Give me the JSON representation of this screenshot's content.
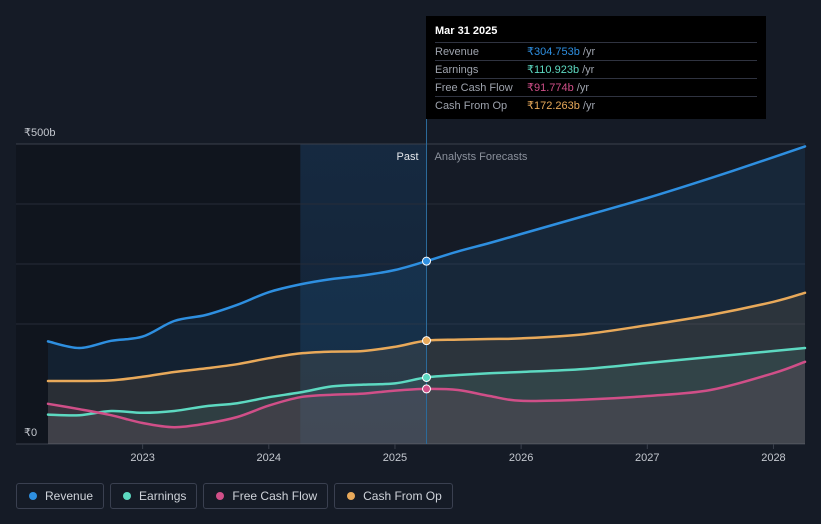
{
  "chart_data": {
    "type": "line",
    "currency_unit": "₹",
    "y_axis": {
      "top_label": "₹500b",
      "bottom_label": "₹0",
      "ylim": [
        0,
        500
      ]
    },
    "x_axis": {
      "ticks": [
        "2023",
        "2024",
        "2025",
        "2026",
        "2027",
        "2028"
      ],
      "tick_values": [
        2023.0,
        2024.0,
        2025.0,
        2026.0,
        2027.0,
        2028.0
      ],
      "range": [
        2022.25,
        2028.25
      ]
    },
    "divider": {
      "x": 2025.25,
      "past_label": "Past",
      "forecast_label": "Analysts Forecasts",
      "past_shade_start": 2024.25
    },
    "series": [
      {
        "name": "Revenue",
        "color": "#2e8fe0",
        "points": [
          [
            2022.25,
            171
          ],
          [
            2022.5,
            160
          ],
          [
            2022.75,
            172
          ],
          [
            2023.0,
            179
          ],
          [
            2023.25,
            205
          ],
          [
            2023.5,
            215
          ],
          [
            2023.75,
            232
          ],
          [
            2024.0,
            253
          ],
          [
            2024.25,
            266
          ],
          [
            2024.5,
            275
          ],
          [
            2024.75,
            281
          ],
          [
            2025.0,
            290
          ],
          [
            2025.25,
            304.753
          ],
          [
            2025.5,
            321
          ],
          [
            2025.75,
            335
          ],
          [
            2026.0,
            350
          ],
          [
            2026.5,
            380
          ],
          [
            2027.0,
            410
          ],
          [
            2027.5,
            443
          ],
          [
            2028.0,
            478
          ],
          [
            2028.25,
            496
          ]
        ]
      },
      {
        "name": "Earnings",
        "color": "#5dd9c1",
        "points": [
          [
            2022.25,
            49
          ],
          [
            2022.5,
            48
          ],
          [
            2022.75,
            55
          ],
          [
            2023.0,
            52
          ],
          [
            2023.25,
            55
          ],
          [
            2023.5,
            63
          ],
          [
            2023.75,
            68
          ],
          [
            2024.0,
            78
          ],
          [
            2024.25,
            86
          ],
          [
            2024.5,
            96
          ],
          [
            2024.75,
            99
          ],
          [
            2025.0,
            101
          ],
          [
            2025.25,
            110.923
          ],
          [
            2025.5,
            115
          ],
          [
            2025.75,
            118
          ],
          [
            2026.0,
            120
          ],
          [
            2026.5,
            125
          ],
          [
            2027.0,
            135
          ],
          [
            2027.5,
            145
          ],
          [
            2028.0,
            155
          ],
          [
            2028.25,
            160
          ]
        ]
      },
      {
        "name": "Free Cash Flow",
        "color": "#d04f88",
        "points": [
          [
            2022.25,
            67
          ],
          [
            2022.5,
            58
          ],
          [
            2022.75,
            48
          ],
          [
            2023.0,
            35
          ],
          [
            2023.25,
            28
          ],
          [
            2023.5,
            34
          ],
          [
            2023.75,
            45
          ],
          [
            2024.0,
            64
          ],
          [
            2024.25,
            78
          ],
          [
            2024.5,
            82
          ],
          [
            2024.75,
            84
          ],
          [
            2025.0,
            89
          ],
          [
            2025.25,
            91.774
          ],
          [
            2025.5,
            90
          ],
          [
            2025.75,
            80
          ],
          [
            2026.0,
            72
          ],
          [
            2026.5,
            74
          ],
          [
            2027.0,
            80
          ],
          [
            2027.5,
            90
          ],
          [
            2028.0,
            118
          ],
          [
            2028.25,
            137
          ]
        ]
      },
      {
        "name": "Cash From Op",
        "color": "#e8a95a",
        "points": [
          [
            2022.25,
            105
          ],
          [
            2022.5,
            105
          ],
          [
            2022.75,
            106
          ],
          [
            2023.0,
            112
          ],
          [
            2023.25,
            120
          ],
          [
            2023.5,
            126
          ],
          [
            2023.75,
            133
          ],
          [
            2024.0,
            143
          ],
          [
            2024.25,
            151
          ],
          [
            2024.5,
            154
          ],
          [
            2024.75,
            155
          ],
          [
            2025.0,
            162
          ],
          [
            2025.25,
            172.263
          ],
          [
            2025.5,
            174
          ],
          [
            2025.75,
            175
          ],
          [
            2026.0,
            176
          ],
          [
            2026.5,
            183
          ],
          [
            2027.0,
            198
          ],
          [
            2027.5,
            215
          ],
          [
            2028.0,
            237
          ],
          [
            2028.25,
            252
          ]
        ]
      }
    ]
  },
  "tooltip": {
    "date": "Mar 31 2025",
    "rows": [
      {
        "label": "Revenue",
        "value": "₹304.753b",
        "unit": "/yr",
        "color": "#2e8fe0"
      },
      {
        "label": "Earnings",
        "value": "₹110.923b",
        "unit": "/yr",
        "color": "#5dd9c1"
      },
      {
        "label": "Free Cash Flow",
        "value": "₹91.774b",
        "unit": "/yr",
        "color": "#d04f88"
      },
      {
        "label": "Cash From Op",
        "value": "₹172.263b",
        "unit": "/yr",
        "color": "#e8a95a"
      }
    ]
  },
  "legend": [
    {
      "label": "Revenue",
      "color": "#2e8fe0"
    },
    {
      "label": "Earnings",
      "color": "#5dd9c1"
    },
    {
      "label": "Free Cash Flow",
      "color": "#d04f88"
    },
    {
      "label": "Cash From Op",
      "color": "#e8a95a"
    }
  ]
}
